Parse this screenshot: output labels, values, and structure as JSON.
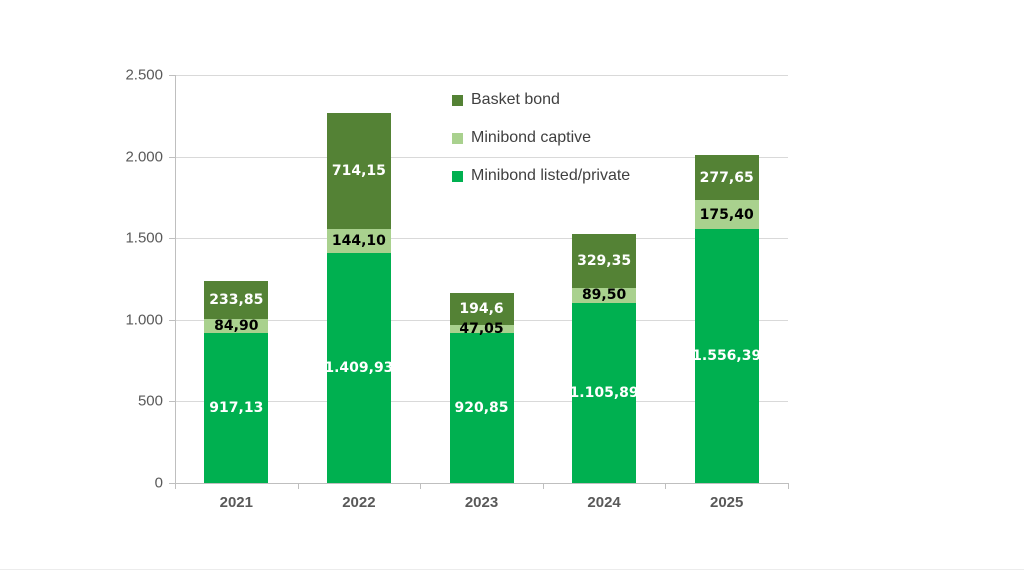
{
  "chart_data": {
    "type": "bar",
    "stacked": true,
    "title": "",
    "xlabel": "",
    "ylabel": "",
    "grid": true,
    "legend_position": "top-right-inside",
    "categories": [
      "2021",
      "2022",
      "2023",
      "2024",
      "2025"
    ],
    "series": [
      {
        "name": "Basket bond",
        "color": "#548235",
        "label_color": "#ffffff",
        "values": [
          233.85,
          714.15,
          194.6,
          329.35,
          277.65
        ],
        "labels": [
          "233,85",
          "714,15",
          "194,6",
          "329,35",
          "277,65"
        ]
      },
      {
        "name": "Minibond captive",
        "color": "#a9d18e",
        "label_color": "#000000",
        "values": [
          84.9,
          144.1,
          47.05,
          89.5,
          175.4
        ],
        "labels": [
          "84,90",
          "144,10",
          "47,05",
          "89,50",
          "175,40"
        ]
      },
      {
        "name": "Minibond listed/private",
        "color": "#00b050",
        "label_color": "#ffffff",
        "values": [
          917.13,
          1409.93,
          920.85,
          1105.89,
          1556.39
        ],
        "labels": [
          "917,13",
          "1.409,93",
          "920,85",
          "1.105,89",
          "1.556,39"
        ]
      }
    ],
    "y_axis": {
      "ylim": [
        0,
        2500
      ],
      "ticks": [
        0,
        500,
        1000,
        1500,
        2000,
        2500
      ],
      "tick_labels": [
        "0",
        "500",
        "1.000",
        "1.500",
        "2.000",
        "2.500"
      ]
    }
  },
  "colors": {
    "background": "#ffffff",
    "gridline": "#d9d9d9",
    "axis_line": "#bfbfbf",
    "axis_text": "#595959",
    "legend_text": "#404040"
  }
}
